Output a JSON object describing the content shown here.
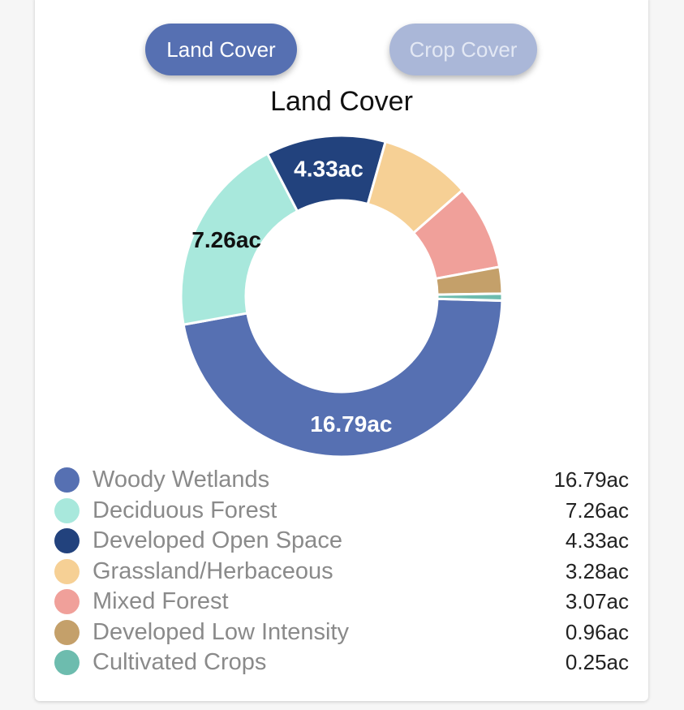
{
  "tabs": {
    "land_cover": "Land Cover",
    "crop_cover": "Crop Cover"
  },
  "colors": {
    "active_tab": "#5670b2",
    "inactive_tab": "#aab7d8"
  },
  "chart_data": {
    "type": "donut",
    "title": "Land Cover",
    "unit": "ac",
    "slices": [
      {
        "name": "Woody Wetlands",
        "value": 16.79,
        "label": "16.79ac",
        "color": "#5670b2",
        "show_label": true,
        "label_color": "#ffffff"
      },
      {
        "name": "Deciduous Forest",
        "value": 7.26,
        "label": "7.26ac",
        "color": "#a8e8dc",
        "show_label": true,
        "label_color": "#111111"
      },
      {
        "name": "Developed Open Space",
        "value": 4.33,
        "label": "4.33ac",
        "color": "#22427d",
        "show_label": true,
        "label_color": "#ffffff"
      },
      {
        "name": "Grassland/Herbaceous",
        "value": 3.28,
        "label": "3.28ac",
        "color": "#f6d095",
        "show_label": false,
        "label_color": "#111111"
      },
      {
        "name": "Mixed Forest",
        "value": 3.07,
        "label": "3.07ac",
        "color": "#f0a09a",
        "show_label": false,
        "label_color": "#111111"
      },
      {
        "name": "Developed Low Intensity",
        "value": 0.96,
        "label": "0.96ac",
        "color": "#c4a06a",
        "show_label": false,
        "label_color": "#111111"
      },
      {
        "name": "Cultivated Crops",
        "value": 0.25,
        "label": "0.25ac",
        "color": "#6dbcae",
        "show_label": false,
        "label_color": "#111111"
      }
    ]
  }
}
